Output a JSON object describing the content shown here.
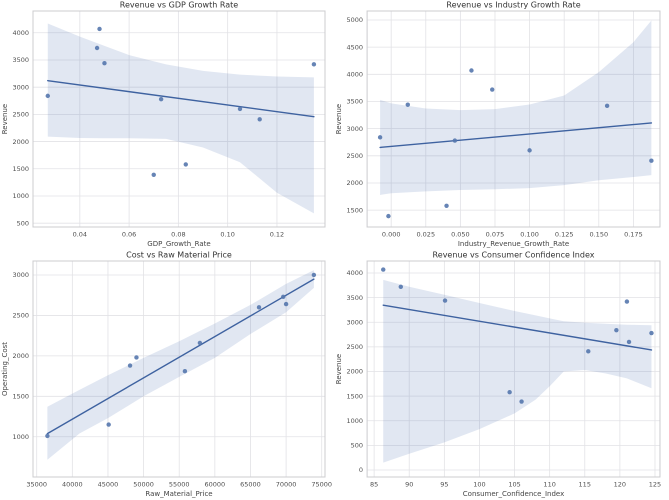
{
  "figure": {
    "background": "#ffffff"
  },
  "style": {
    "point_color": "#5577ad",
    "point_opacity": 0.9,
    "line_color": "#3e62a0",
    "band_color": "#4c72b0",
    "band_opacity": 0.17,
    "grid_color": "#e2e2e6",
    "spine_color": "#cccccf",
    "title_color": "#333333",
    "tick_color": "#4f4f4f",
    "label_color": "#454545"
  },
  "chart_data": [
    {
      "type": "scatter",
      "title": "Revenue vs GDP Growth Rate",
      "xlabel": "GDP_Growth_Rate",
      "ylabel": "Revenue",
      "xlim": [
        0.021,
        0.1395
      ],
      "ylim": [
        430,
        4400
      ],
      "xticks": [
        0.04,
        0.06,
        0.08,
        0.1,
        0.12
      ],
      "xtick_labels": [
        "0.04",
        "0.06",
        "0.08",
        "0.10",
        "0.12"
      ],
      "yticks": [
        500,
        1000,
        1500,
        2000,
        2500,
        3000,
        3500,
        4000
      ],
      "ytick_labels": [
        "500",
        "1000",
        "1500",
        "2000",
        "2500",
        "3000",
        "3500",
        "4000"
      ],
      "grid": true,
      "regression": true,
      "points": [
        [
          0.027,
          2840
        ],
        [
          0.048,
          4070
        ],
        [
          0.047,
          3720
        ],
        [
          0.05,
          3440
        ],
        [
          0.07,
          1390
        ],
        [
          0.073,
          2780
        ],
        [
          0.083,
          1580
        ],
        [
          0.105,
          2600
        ],
        [
          0.113,
          2410
        ],
        [
          0.135,
          3420
        ]
      ],
      "ci_band": {
        "x": [
          0.027,
          0.04,
          0.05,
          0.06,
          0.075,
          0.09,
          0.105,
          0.12,
          0.135
        ],
        "upper": [
          4170,
          3930,
          3760,
          3590,
          3420,
          3300,
          3230,
          3195,
          3180
        ],
        "lower": [
          2090,
          2065,
          2060,
          2060,
          2050,
          1890,
          1620,
          1060,
          680
        ]
      }
    },
    {
      "type": "scatter",
      "title": "Revenue vs Industry Growth Rate",
      "xlabel": "Industry_Revenue_Growth_Rate",
      "ylabel": "Revenue",
      "xlim": [
        -0.0174,
        0.1942
      ],
      "ylim": [
        1190,
        5165
      ],
      "xticks": [
        0.0,
        0.025,
        0.05,
        0.075,
        0.1,
        0.125,
        0.15,
        0.175
      ],
      "xtick_labels": [
        "0.000",
        "0.025",
        "0.050",
        "0.075",
        "0.100",
        "0.125",
        "0.150",
        "0.175"
      ],
      "yticks": [
        1500,
        2000,
        2500,
        3000,
        3500,
        4000,
        4500,
        5000
      ],
      "ytick_labels": [
        "1500",
        "2000",
        "2500",
        "3000",
        "3500",
        "4000",
        "4500",
        "5000"
      ],
      "grid": true,
      "regression": true,
      "points": [
        [
          -0.008,
          2840
        ],
        [
          0.058,
          4070
        ],
        [
          0.073,
          3720
        ],
        [
          0.012,
          3440
        ],
        [
          -0.002,
          1390
        ],
        [
          0.046,
          2780
        ],
        [
          0.04,
          1580
        ],
        [
          0.1,
          2600
        ],
        [
          0.188,
          2410
        ],
        [
          0.156,
          3420
        ]
      ],
      "ci_band": {
        "x": [
          -0.008,
          0.0,
          0.025,
          0.05,
          0.075,
          0.1,
          0.125,
          0.15,
          0.175,
          0.188
        ],
        "upper": [
          3530,
          3465,
          3370,
          3340,
          3360,
          3445,
          3610,
          4040,
          4590,
          4990
        ],
        "lower": [
          1780,
          1810,
          1845,
          1870,
          1885,
          1905,
          1960,
          2050,
          2110,
          2145
        ]
      }
    },
    {
      "type": "scatter",
      "title": "Cost vs Raw Material Price",
      "xlabel": "Raw_Material_Price",
      "ylabel": "Operating_Cost",
      "xlim": [
        34480,
        75460
      ],
      "ylim": [
        502,
        3173
      ],
      "xticks": [
        35000,
        40000,
        45000,
        50000,
        55000,
        60000,
        65000,
        70000,
        75000
      ],
      "xtick_labels": [
        "35000",
        "40000",
        "45000",
        "50000",
        "55000",
        "60000",
        "65000",
        "70000",
        "75000"
      ],
      "yticks": [
        1000,
        1500,
        2000,
        2500,
        3000
      ],
      "ytick_labels": [
        "1000",
        "1500",
        "2000",
        "2500",
        "3000"
      ],
      "grid": true,
      "regression": true,
      "points": [
        [
          36500,
          1010
        ],
        [
          45100,
          1150
        ],
        [
          48100,
          1880
        ],
        [
          49000,
          1980
        ],
        [
          55800,
          1810
        ],
        [
          57900,
          2160
        ],
        [
          66200,
          2600
        ],
        [
          69600,
          2730
        ],
        [
          70000,
          2640
        ],
        [
          73900,
          3000
        ]
      ],
      "ci_band": {
        "x": [
          36500,
          41000,
          45000,
          50000,
          55000,
          60000,
          65000,
          70000,
          73900
        ],
        "upper": [
          1370,
          1580,
          1760,
          1975,
          2180,
          2400,
          2630,
          2890,
          3060
        ],
        "lower": [
          715,
          1040,
          1230,
          1500,
          1740,
          1975,
          2270,
          2540,
          2840
        ]
      }
    },
    {
      "type": "scatter",
      "title": "Revenue vs Consumer Confidence Index",
      "xlabel": "Consumer_Confidence_Index",
      "ylabel": "Revenue",
      "xlim": [
        84.0,
        125.71
      ],
      "ylim": [
        -142,
        4244
      ],
      "xticks": [
        85,
        90,
        95,
        100,
        105,
        110,
        115,
        120,
        125
      ],
      "xtick_labels": [
        "85",
        "90",
        "95",
        "100",
        "105",
        "110",
        "115",
        "120",
        "125"
      ],
      "yticks": [
        0,
        500,
        1000,
        1500,
        2000,
        2500,
        3000,
        3500,
        4000
      ],
      "ytick_labels": [
        "0",
        "500",
        "1000",
        "1500",
        "2000",
        "2500",
        "3000",
        "3500",
        "4000"
      ],
      "grid": true,
      "regression": true,
      "points": [
        [
          119.5,
          2840
        ],
        [
          86.3,
          4070
        ],
        [
          88.8,
          3720
        ],
        [
          95.1,
          3440
        ],
        [
          106.0,
          1390
        ],
        [
          124.5,
          2780
        ],
        [
          104.3,
          1580
        ],
        [
          121.3,
          2600
        ],
        [
          115.5,
          2410
        ],
        [
          121.0,
          3420
        ]
      ],
      "ci_band": {
        "x": [
          86.3,
          90,
          95,
          100,
          105,
          108,
          110,
          112,
          115,
          118,
          121,
          124.5
        ],
        "upper": [
          3860,
          3720,
          3560,
          3390,
          3230,
          3140,
          3080,
          3020,
          2990,
          2970,
          2950,
          2940
        ],
        "lower": [
          150,
          330,
          560,
          830,
          1150,
          1430,
          1700,
          2000,
          2030,
          1960,
          1860,
          1660
        ]
      }
    }
  ]
}
